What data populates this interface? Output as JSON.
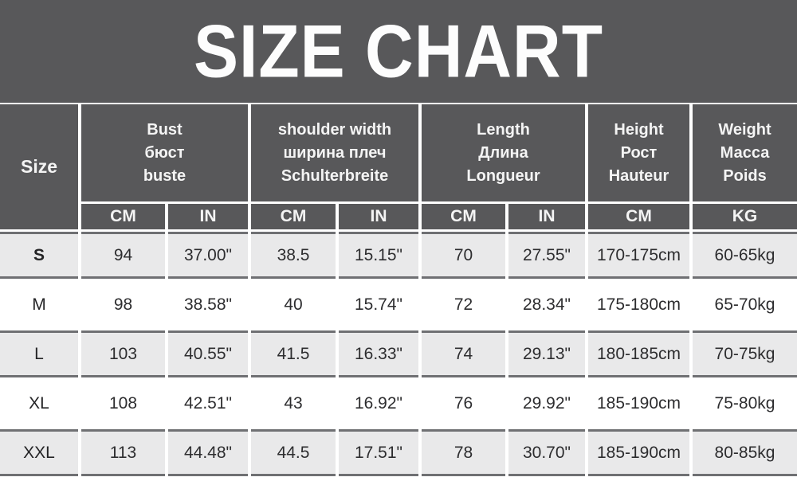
{
  "banner": {
    "title": "SIZE CHART"
  },
  "table": {
    "size_header": "Size",
    "groups": [
      {
        "name": "bust",
        "label_lines": [
          "Bust",
          "бюст",
          "buste"
        ],
        "units": [
          "CM",
          "IN"
        ]
      },
      {
        "name": "shoulder_width",
        "label_lines": [
          "shoulder width",
          "ширина плеч",
          "Schulterbreite"
        ],
        "units": [
          "CM",
          "IN"
        ]
      },
      {
        "name": "length",
        "label_lines": [
          "Length",
          "Длина",
          "Longueur"
        ],
        "units": [
          "CM",
          "IN"
        ]
      },
      {
        "name": "height",
        "label_lines": [
          "Height",
          "Рост",
          "Hauteur"
        ],
        "units": [
          "CM"
        ]
      },
      {
        "name": "weight",
        "label_lines": [
          "Weight",
          "Масса",
          "Poids"
        ],
        "units": [
          "KG"
        ]
      }
    ],
    "rows": [
      {
        "size": "S",
        "cells": [
          "94",
          "37.00\"",
          "38.5",
          "15.15\"",
          "70",
          "27.55\"",
          "170-175cm",
          "60-65kg"
        ]
      },
      {
        "size": "M",
        "cells": [
          "98",
          "38.58\"",
          "40",
          "15.74\"",
          "72",
          "28.34\"",
          "175-180cm",
          "65-70kg"
        ]
      },
      {
        "size": "L",
        "cells": [
          "103",
          "40.55\"",
          "41.5",
          "16.33\"",
          "74",
          "29.13\"",
          "180-185cm",
          "70-75kg"
        ]
      },
      {
        "size": "XL",
        "cells": [
          "108",
          "42.51\"",
          "43",
          "16.92\"",
          "76",
          "29.92\"",
          "185-190cm",
          "75-80kg"
        ]
      },
      {
        "size": "XXL",
        "cells": [
          "113",
          "44.48\"",
          "44.5",
          "17.51\"",
          "78",
          "30.70\"",
          "185-190cm",
          "80-85kg"
        ]
      }
    ]
  },
  "colors": {
    "banner_bg": "#58585a",
    "header_bg": "#58585a",
    "header_text": "#f4f4f4",
    "row_alt_bg": "#e9e9ea",
    "row_border": "#6f7073",
    "data_text": "#2d2d2f",
    "page_bg": "#ffffff"
  },
  "chart_data": {
    "type": "table",
    "title": "SIZE CHART",
    "columns": [
      "Size",
      "Bust CM",
      "Bust IN",
      "shoulder width CM",
      "shoulder width IN",
      "Length CM",
      "Length IN",
      "Height CM",
      "Weight KG"
    ],
    "rows": [
      [
        "S",
        "94",
        "37.00\"",
        "38.5",
        "15.15\"",
        "70",
        "27.55\"",
        "170-175cm",
        "60-65kg"
      ],
      [
        "M",
        "98",
        "38.58\"",
        "40",
        "15.74\"",
        "72",
        "28.34\"",
        "175-180cm",
        "65-70kg"
      ],
      [
        "L",
        "103",
        "40.55\"",
        "41.5",
        "16.33\"",
        "74",
        "29.13\"",
        "180-185cm",
        "70-75kg"
      ],
      [
        "XL",
        "108",
        "42.51\"",
        "43",
        "16.92\"",
        "76",
        "29.92\"",
        "185-190cm",
        "75-80kg"
      ],
      [
        "XXL",
        "113",
        "44.48\"",
        "44.5",
        "17.51\"",
        "78",
        "30.70\"",
        "185-190cm",
        "80-85kg"
      ]
    ]
  }
}
